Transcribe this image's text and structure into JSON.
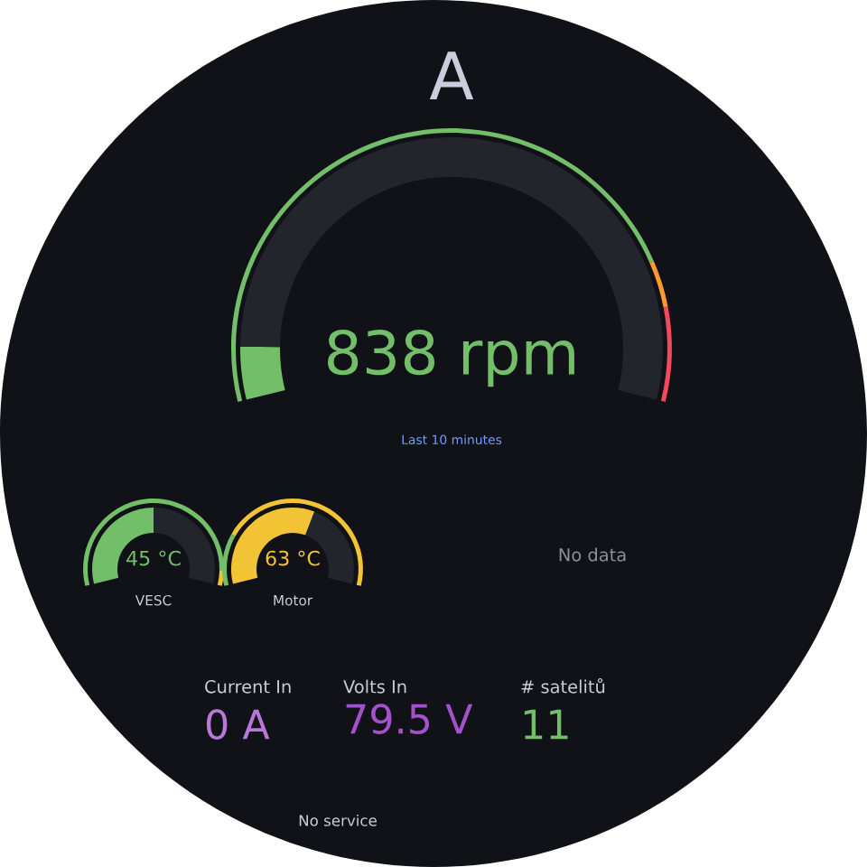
{
  "chart_data": [
    {
      "type": "donut",
      "title": "A",
      "categories": [
        null,
        null,
        null
      ],
      "annotations": [
        "838 rpm",
        "Last 10 minutes"
      ],
      "series": [
        {
          "values": [
            7,
            93,
            null
          ],
          "colors": [
            "#73bf69",
            "#22252b",
            null
          ]
        },
        {
          "values": [
            82,
            6,
            12
          ],
          "colors": [
            "#73bf69",
            "#ff9830",
            "#f2495c"
          ]
        }
      ]
    },
    {
      "type": "donut",
      "xlabel": "VESC",
      "categories": [
        null,
        null
      ],
      "annotations": [
        "45 °C"
      ],
      "series": [
        {
          "values": [
            50,
            50
          ],
          "colors": [
            "#73bf69",
            "#22252b"
          ]
        },
        {
          "values": [
            94,
            6
          ],
          "colors": [
            "#73bf69",
            "#f2c335"
          ]
        }
      ]
    },
    {
      "type": "donut",
      "xlabel": "Motor",
      "categories": [
        null,
        null
      ],
      "annotations": [
        "63 °C"
      ],
      "series": [
        {
          "values": [
            60,
            40
          ],
          "colors": [
            "#f2c335",
            "#22252b"
          ]
        },
        {
          "values": [
            21,
            79
          ],
          "colors": [
            "#73bf69",
            "#f2c335"
          ]
        }
      ]
    },
    {
      "type": "other",
      "annotations": [
        "No data"
      ]
    },
    {
      "type": "other",
      "title": "Current In",
      "annotations": [
        "0 A"
      ],
      "colors": [
        "#b877d9"
      ]
    },
    {
      "type": "other",
      "title": "Volts In",
      "annotations": [
        "79.5 V"
      ],
      "colors": [
        "#a352cc"
      ]
    },
    {
      "type": "other",
      "title": "# satelitů",
      "annotations": [
        "11"
      ],
      "colors": [
        "#73bf69"
      ]
    },
    {
      "type": "other",
      "annotations": [
        "No service"
      ]
    }
  ]
}
